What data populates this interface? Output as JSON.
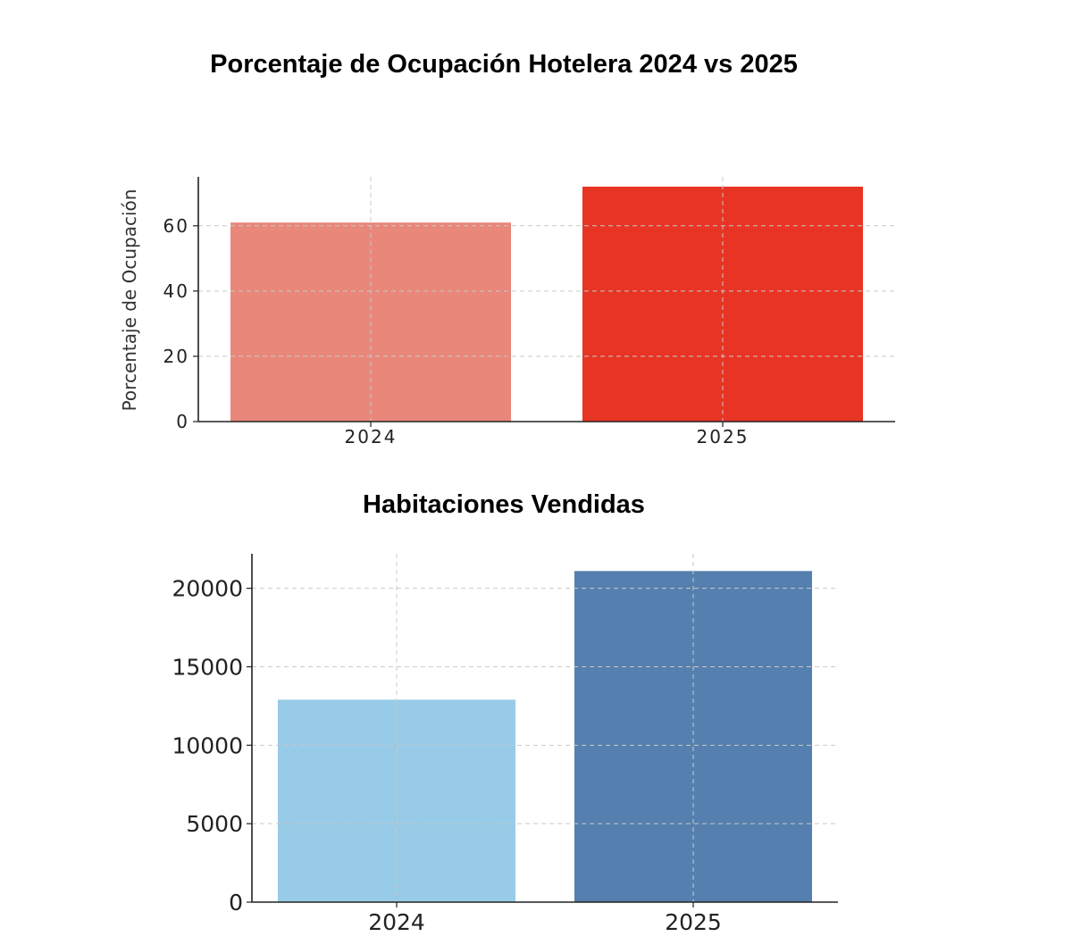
{
  "chart_data": [
    {
      "type": "bar",
      "title": "Porcentaje de Ocupación Hotelera 2024 vs 2025",
      "xlabel": "",
      "ylabel": "Porcentaje de Ocupación",
      "categories": [
        "2024",
        "2025"
      ],
      "values": [
        61,
        72
      ],
      "colors": [
        "#e8877a",
        "#e83424"
      ],
      "ylim": [
        0,
        75
      ],
      "yticks": [
        0,
        20,
        40,
        60
      ],
      "grid": true,
      "legend": "none"
    },
    {
      "type": "bar",
      "title": "Habitaciones Vendidas",
      "xlabel": "",
      "ylabel": "",
      "categories": [
        "2024",
        "2025"
      ],
      "values": [
        12900,
        21100
      ],
      "colors": [
        "#97cbe7",
        "#557fae"
      ],
      "ylim": [
        0,
        22200
      ],
      "yticks": [
        0,
        5000,
        10000,
        15000,
        20000
      ],
      "grid": true,
      "legend": "none"
    }
  ]
}
